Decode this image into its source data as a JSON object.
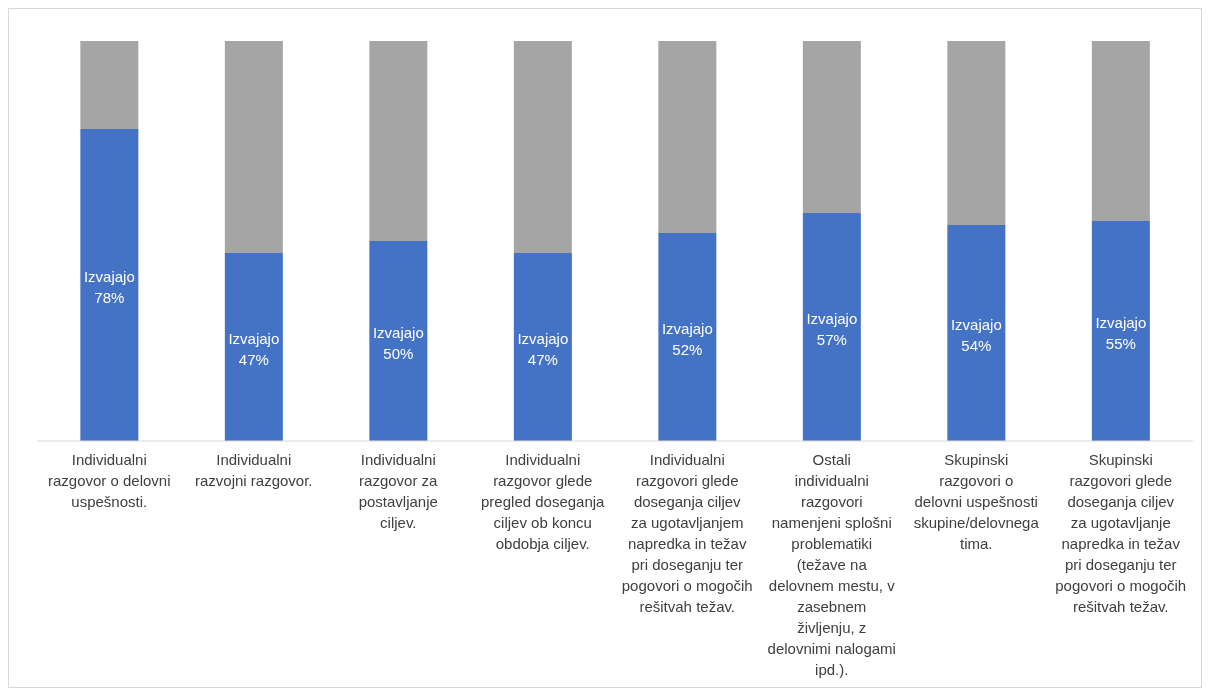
{
  "chart_data": {
    "type": "bar",
    "stacked": true,
    "categories": [
      "Individualni razgovor o delovni uspešnosti.",
      "Individualni razvojni razgovor.",
      "Individualni razgovor za postavljanje ciljev.",
      "Individualni razgovor glede pregled doseganja ciljev ob koncu obdobja ciljev.",
      "Individualni razgovori glede doseganja ciljev za ugotavljanjem napredka in težav pri doseganju ter pogovori o mogočih rešitvah težav.",
      "Ostali individualni razgovori namenjeni splošni problematiki (težave na delovnem mestu, v zasebnem življenju, z delovnimi nalogami ipd.).",
      "Skupinski razgovori o delovni uspešnosti skupine/delovnega tima.",
      "Skupinski razgovori glede doseganja ciljev za ugotavljanje napredka in težav pri doseganju ter pogovori o mogočih rešitvah težav."
    ],
    "series": [
      {
        "name": "Izvajajo",
        "color": "#4472c4",
        "values": [
          78,
          47,
          50,
          47,
          52,
          57,
          54,
          55
        ],
        "value_labels": [
          "78%",
          "47%",
          "50%",
          "47%",
          "52%",
          "57%",
          "54%",
          "55%"
        ]
      },
      {
        "color": "#a5a5a5",
        "values": [
          22,
          53,
          50,
          53,
          48,
          43,
          46,
          45
        ]
      }
    ]
  }
}
